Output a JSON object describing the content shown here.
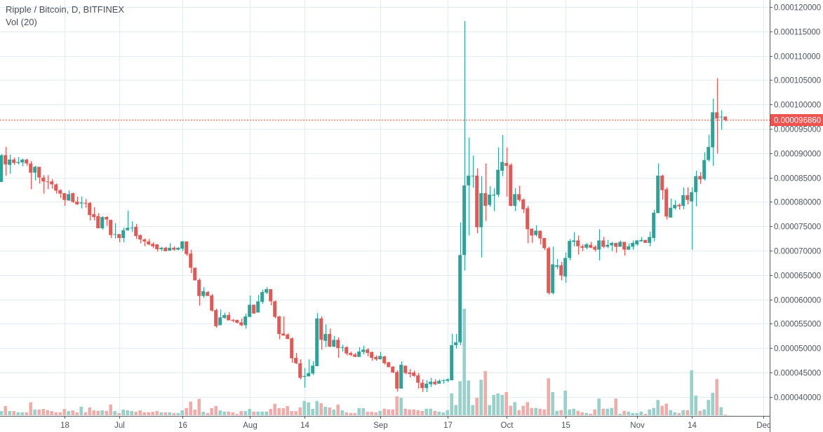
{
  "header": {
    "symbol_title": "Ripple / Bitcoin, D, BITFINEX",
    "indicator": "Vol (20)"
  },
  "colors": {
    "up": "#26a69a",
    "down": "#ef5350",
    "up_volume": "#92d3cc",
    "down_volume": "#f7a9a7",
    "grid": "#e1ecf2",
    "axis": "#555a66",
    "last_price": "#ef5350"
  },
  "chart_data": {
    "type": "candlestick",
    "title": "Ripple / Bitcoin, D, BITFINEX",
    "price_unit_multiplier": 1e-06,
    "ylim": [
      40,
      120
    ],
    "y_ticks": [
      {
        "value": 40,
        "label": "0.000040000"
      },
      {
        "value": 45,
        "label": "0.000045000"
      },
      {
        "value": 50,
        "label": "0.000050000"
      },
      {
        "value": 55,
        "label": "0.000055000"
      },
      {
        "value": 60,
        "label": "0.000060000"
      },
      {
        "value": 65,
        "label": "0.000065000"
      },
      {
        "value": 70,
        "label": "0.000070000"
      },
      {
        "value": 75,
        "label": "0.000075000"
      },
      {
        "value": 80,
        "label": "0.000080000"
      },
      {
        "value": 85,
        "label": "0.000085000"
      },
      {
        "value": 90,
        "label": "0.000090000"
      },
      {
        "value": 95,
        "label": "0.000095000"
      },
      {
        "value": 100,
        "label": "0.000100000"
      },
      {
        "value": 105,
        "label": "0.000105000"
      },
      {
        "value": 110,
        "label": "0.000110000"
      },
      {
        "value": 115,
        "label": "0.000115000"
      },
      {
        "value": 120,
        "label": "0.000120000"
      }
    ],
    "x_ticks": [
      {
        "index": 15,
        "label": "18"
      },
      {
        "index": 28,
        "label": "Jul"
      },
      {
        "index": 43,
        "label": "16"
      },
      {
        "index": 59,
        "label": "Aug"
      },
      {
        "index": 72,
        "label": "14"
      },
      {
        "index": 90,
        "label": "Sep"
      },
      {
        "index": 106,
        "label": "17"
      },
      {
        "index": 120,
        "label": "Oct"
      },
      {
        "index": 134,
        "label": "15"
      },
      {
        "index": 151,
        "label": "Nov"
      },
      {
        "index": 164,
        "label": "14"
      },
      {
        "index": 181,
        "label": "Dec"
      }
    ],
    "last_price": {
      "value": 96.86,
      "label": "0.000096860"
    },
    "ohlc": [
      [
        84.1,
        89.8,
        84.1,
        89.6
      ],
      [
        89.6,
        91.3,
        85.4,
        87.7
      ],
      [
        87.6,
        89.7,
        85.8,
        88.7
      ],
      [
        88.7,
        89.1,
        87.6,
        88.0
      ],
      [
        88.0,
        89.2,
        87.7,
        88.2
      ],
      [
        88.1,
        88.9,
        87.3,
        88.7
      ],
      [
        88.7,
        88.9,
        87.4,
        87.9
      ],
      [
        87.9,
        88.4,
        82.6,
        86.0
      ],
      [
        86.0,
        87.4,
        84.4,
        87.2
      ],
      [
        87.2,
        87.2,
        83.8,
        85.0
      ],
      [
        85.0,
        85.5,
        81.7,
        84.2
      ],
      [
        84.2,
        85.5,
        82.6,
        84.1
      ],
      [
        84.2,
        84.7,
        82.7,
        83.6
      ],
      [
        83.6,
        83.8,
        81.7,
        82.3
      ],
      [
        82.4,
        82.6,
        80.8,
        81.7
      ],
      [
        81.8,
        81.8,
        79.2,
        80.4
      ],
      [
        80.3,
        82.4,
        80.2,
        81.6
      ],
      [
        81.8,
        81.9,
        79.8,
        80.0
      ],
      [
        80.1,
        81.1,
        79.4,
        79.5
      ],
      [
        79.7,
        81.1,
        78.7,
        79.9
      ],
      [
        79.8,
        80.6,
        78.8,
        79.7
      ],
      [
        79.8,
        80.0,
        76.2,
        77.3
      ],
      [
        77.5,
        78.9,
        76.2,
        76.9
      ],
      [
        77.1,
        77.7,
        74.6,
        74.6
      ],
      [
        74.6,
        77.1,
        74.3,
        76.9
      ],
      [
        76.9,
        77.1,
        75.1,
        76.4
      ],
      [
        76.3,
        76.4,
        72.6,
        73.2
      ],
      [
        73.3,
        75.6,
        72.5,
        73.4
      ],
      [
        73.4,
        73.4,
        71.7,
        72.6
      ],
      [
        72.6,
        74.7,
        71.7,
        74.2
      ],
      [
        74.2,
        78.2,
        74.1,
        74.7
      ],
      [
        74.6,
        76.0,
        73.8,
        74.7
      ],
      [
        74.9,
        75.5,
        72.4,
        73.0
      ],
      [
        73.2,
        73.3,
        71.5,
        72.3
      ],
      [
        72.3,
        72.5,
        70.9,
        71.9
      ],
      [
        71.9,
        72.4,
        71.1,
        71.3
      ],
      [
        71.4,
        71.7,
        70.5,
        70.9
      ],
      [
        71.3,
        71.3,
        69.8,
        70.3
      ],
      [
        70.3,
        70.8,
        69.9,
        70.6
      ],
      [
        70.6,
        70.8,
        69.9,
        69.9
      ],
      [
        70.0,
        71.5,
        70.0,
        70.6
      ],
      [
        70.6,
        70.9,
        70.0,
        70.2
      ],
      [
        70.2,
        70.7,
        70.1,
        70.6
      ],
      [
        70.4,
        72.0,
        69.9,
        71.9
      ],
      [
        71.9,
        71.9,
        68.9,
        69.3
      ],
      [
        69.4,
        70.2,
        65.4,
        66.5
      ],
      [
        66.5,
        66.5,
        63.9,
        63.9
      ],
      [
        64.0,
        64.3,
        58.7,
        60.7
      ],
      [
        60.7,
        62.5,
        60.3,
        61.7
      ],
      [
        61.5,
        61.7,
        60.7,
        60.7
      ],
      [
        60.8,
        61.1,
        57.5,
        57.7
      ],
      [
        57.8,
        58.1,
        54.2,
        54.5
      ],
      [
        54.7,
        57.9,
        54.7,
        56.3
      ],
      [
        56.2,
        57.3,
        56.0,
        56.8
      ],
      [
        56.8,
        57.4,
        55.7,
        55.7
      ],
      [
        55.8,
        56.0,
        55.3,
        55.6
      ],
      [
        55.8,
        55.8,
        55.1,
        55.2
      ],
      [
        55.3,
        56.1,
        54.5,
        54.7
      ],
      [
        54.7,
        57.1,
        54.0,
        56.5
      ],
      [
        56.4,
        60.8,
        56.4,
        58.9
      ],
      [
        58.9,
        58.9,
        57.1,
        57.1
      ],
      [
        57.3,
        60.9,
        57.3,
        59.6
      ],
      [
        59.5,
        62.0,
        59.1,
        61.5
      ],
      [
        61.4,
        62.5,
        61.1,
        62.1
      ],
      [
        62.1,
        62.1,
        58.8,
        59.6
      ],
      [
        59.6,
        59.8,
        56.1,
        56.4
      ],
      [
        56.5,
        56.6,
        51.8,
        52.9
      ],
      [
        53.0,
        56.5,
        52.5,
        52.6
      ],
      [
        52.8,
        53.0,
        51.8,
        51.9
      ],
      [
        52.0,
        52.2,
        47.0,
        47.9
      ],
      [
        48.0,
        49.0,
        46.7,
        46.9
      ],
      [
        46.9,
        47.7,
        43.6,
        43.9
      ],
      [
        44.1,
        45.9,
        41.9,
        44.3
      ],
      [
        44.2,
        47.7,
        44.2,
        44.9
      ],
      [
        44.8,
        47.3,
        44.5,
        46.4
      ],
      [
        46.3,
        57.2,
        46.3,
        56.1
      ],
      [
        56.1,
        56.5,
        49.7,
        51.7
      ],
      [
        51.5,
        54.9,
        50.2,
        52.9
      ],
      [
        52.9,
        54.0,
        50.2,
        50.3
      ],
      [
        50.3,
        52.5,
        50.2,
        51.7
      ],
      [
        51.7,
        52.2,
        48.0,
        50.0
      ],
      [
        50.1,
        50.7,
        49.3,
        50.2
      ],
      [
        50.2,
        50.4,
        48.5,
        48.9
      ],
      [
        49.0,
        49.3,
        48.4,
        48.6
      ],
      [
        48.7,
        49.0,
        48.2,
        48.2
      ],
      [
        48.2,
        50.2,
        48.2,
        49.3
      ],
      [
        49.2,
        50.5,
        48.7,
        49.7
      ],
      [
        49.7,
        50.0,
        48.3,
        49.0
      ],
      [
        49.2,
        49.3,
        47.4,
        48.0
      ],
      [
        48.2,
        48.5,
        47.4,
        47.7
      ],
      [
        47.7,
        49.2,
        47.7,
        48.4
      ],
      [
        48.3,
        48.4,
        46.6,
        46.9
      ],
      [
        47.1,
        47.2,
        46.1,
        46.1
      ],
      [
        46.2,
        46.3,
        44.9,
        45.0
      ],
      [
        45.1,
        45.4,
        41.1,
        41.7
      ],
      [
        41.7,
        47.3,
        41.7,
        46.6
      ],
      [
        46.4,
        46.4,
        44.6,
        44.9
      ],
      [
        45.0,
        45.7,
        44.0,
        44.7
      ],
      [
        45.0,
        45.4,
        44.1,
        44.3
      ],
      [
        44.4,
        44.9,
        41.7,
        42.9
      ],
      [
        42.9,
        43.6,
        41.0,
        41.8
      ],
      [
        41.8,
        43.4,
        41.0,
        42.7
      ],
      [
        42.6,
        43.9,
        42.0,
        43.1
      ],
      [
        43.1,
        43.6,
        42.4,
        42.6
      ],
      [
        42.7,
        43.6,
        42.7,
        43.3
      ],
      [
        43.3,
        43.6,
        42.7,
        43.4
      ],
      [
        43.3,
        43.8,
        43.0,
        43.6
      ],
      [
        43.4,
        52.9,
        43.4,
        50.6
      ],
      [
        50.6,
        52.9,
        49.9,
        51.2
      ],
      [
        51.2,
        75.8,
        50.6,
        69.1
      ],
      [
        69.1,
        117.1,
        65.9,
        83.4
      ],
      [
        83.4,
        93.2,
        73.1,
        85.4
      ],
      [
        85.3,
        89.5,
        82.9,
        85.4
      ],
      [
        85.4,
        86.9,
        73.6,
        74.8
      ],
      [
        74.8,
        85.3,
        68.6,
        81.8
      ],
      [
        81.8,
        87.9,
        76.1,
        79.2
      ],
      [
        79.4,
        83.2,
        79.0,
        81.5
      ],
      [
        81.3,
        82.8,
        78.1,
        81.5
      ],
      [
        81.5,
        91.2,
        81.0,
        86.6
      ],
      [
        86.4,
        93.7,
        85.3,
        88.2
      ],
      [
        88.0,
        91.2,
        81.1,
        87.4
      ],
      [
        87.6,
        87.9,
        79.1,
        79.2
      ],
      [
        79.2,
        82.8,
        78.1,
        81.6
      ],
      [
        81.6,
        83.3,
        80.1,
        80.4
      ],
      [
        80.5,
        80.7,
        77.7,
        78.5
      ],
      [
        78.7,
        79.2,
        71.5,
        74.4
      ],
      [
        74.5,
        74.6,
        71.6,
        73.1
      ],
      [
        73.2,
        75.2,
        72.9,
        74.1
      ],
      [
        74.1,
        74.1,
        71.3,
        72.5
      ],
      [
        72.6,
        72.6,
        70.1,
        70.5
      ],
      [
        70.5,
        70.8,
        61.0,
        61.3
      ],
      [
        61.3,
        70.8,
        61.0,
        67.2
      ],
      [
        66.7,
        68.3,
        66.2,
        67.0
      ],
      [
        67.0,
        67.7,
        63.9,
        64.9
      ],
      [
        64.7,
        69.6,
        63.4,
        68.5
      ],
      [
        68.5,
        72.4,
        68.0,
        72.0
      ],
      [
        71.8,
        73.8,
        70.9,
        72.1
      ],
      [
        72.1,
        73.1,
        69.2,
        70.9
      ],
      [
        70.9,
        71.3,
        69.9,
        70.6
      ],
      [
        70.6,
        71.6,
        70.3,
        71.3
      ],
      [
        71.2,
        71.8,
        70.5,
        70.6
      ],
      [
        70.8,
        71.1,
        69.8,
        70.2
      ],
      [
        70.2,
        74.4,
        68.0,
        72.1
      ],
      [
        72.1,
        72.8,
        70.5,
        70.8
      ],
      [
        70.8,
        72.2,
        70.5,
        71.2
      ],
      [
        71.1,
        71.8,
        69.9,
        71.6
      ],
      [
        71.6,
        71.6,
        69.6,
        70.8
      ],
      [
        70.8,
        72.1,
        70.8,
        71.8
      ],
      [
        71.8,
        71.8,
        69.0,
        70.2
      ],
      [
        70.2,
        71.5,
        70.2,
        70.9
      ],
      [
        70.8,
        72.1,
        70.2,
        71.6
      ],
      [
        71.3,
        72.2,
        71.0,
        72.1
      ],
      [
        71.9,
        72.8,
        71.9,
        72.2
      ],
      [
        72.2,
        72.2,
        71.6,
        71.6
      ],
      [
        71.6,
        73.9,
        70.9,
        72.8
      ],
      [
        72.6,
        78.4,
        71.9,
        77.8
      ],
      [
        77.7,
        87.9,
        77.7,
        85.4
      ],
      [
        85.4,
        85.6,
        80.5,
        82.4
      ],
      [
        82.6,
        83.0,
        76.4,
        77.0
      ],
      [
        76.8,
        80.7,
        76.8,
        78.8
      ],
      [
        78.7,
        80.4,
        78.4,
        79.4
      ],
      [
        79.4,
        79.7,
        78.4,
        79.1
      ],
      [
        79.2,
        83.0,
        78.5,
        81.4
      ],
      [
        81.4,
        83.0,
        79.5,
        80.4
      ],
      [
        80.1,
        83.0,
        70.2,
        82.0
      ],
      [
        82.0,
        86.4,
        79.1,
        85.3
      ],
      [
        85.3,
        86.1,
        83.7,
        84.6
      ],
      [
        84.7,
        90.2,
        84.4,
        88.6
      ],
      [
        88.6,
        93.8,
        88.3,
        91.3
      ],
      [
        91.2,
        101.2,
        87.4,
        98.4
      ],
      [
        98.4,
        105.4,
        89.9,
        97.1
      ],
      [
        97.4,
        98.8,
        94.8,
        97.5
      ],
      [
        97.5,
        97.6,
        96.5,
        96.86
      ]
    ],
    "volume_relative": [
      5.7,
      12.7,
      5.7,
      5.7,
      4,
      4,
      4,
      17.7,
      7.7,
      7.7,
      8.7,
      7,
      5.7,
      4,
      4,
      8.7,
      5.7,
      6.7,
      4,
      11.7,
      4,
      10.7,
      6.7,
      6,
      6.7,
      6,
      14.7,
      5.7,
      3,
      7.7,
      6.7,
      5.7,
      4.7,
      6.7,
      4,
      4,
      4.7,
      5.7,
      4,
      4,
      4,
      3,
      3,
      6.7,
      9.7,
      18.7,
      7.7,
      22.7,
      4.7,
      3,
      9.7,
      12.7,
      6.7,
      5,
      5,
      4,
      1.7,
      5.7,
      5.7,
      8.7,
      5,
      5,
      5,
      5,
      8.7,
      15.7,
      9.7,
      9.7,
      12.7,
      5.7,
      5.7,
      10.7,
      19.7,
      17.7,
      8.7,
      19.7,
      16.7,
      11.7,
      10.7,
      7.7,
      14.7,
      6.7,
      4,
      3,
      3,
      9.7,
      9.7,
      4.7,
      4.7,
      4,
      6,
      9,
      8,
      8,
      26,
      24,
      9,
      8,
      8,
      7,
      6,
      9,
      9,
      6,
      5,
      4,
      7,
      30,
      14,
      47,
      147,
      48,
      14,
      24,
      49,
      61,
      14,
      28,
      30,
      28,
      32,
      13,
      18,
      7,
      13,
      18,
      10,
      10,
      9,
      8,
      51,
      32,
      6,
      7,
      34,
      8,
      9,
      6,
      4,
      3,
      2,
      8,
      23,
      9,
      9,
      10,
      23,
      2,
      6,
      5,
      3,
      3,
      5,
      2,
      8,
      10,
      21,
      13,
      16,
      7,
      4,
      3,
      7,
      7,
      62,
      27,
      6,
      8,
      21,
      31,
      50,
      11,
      1
    ]
  }
}
